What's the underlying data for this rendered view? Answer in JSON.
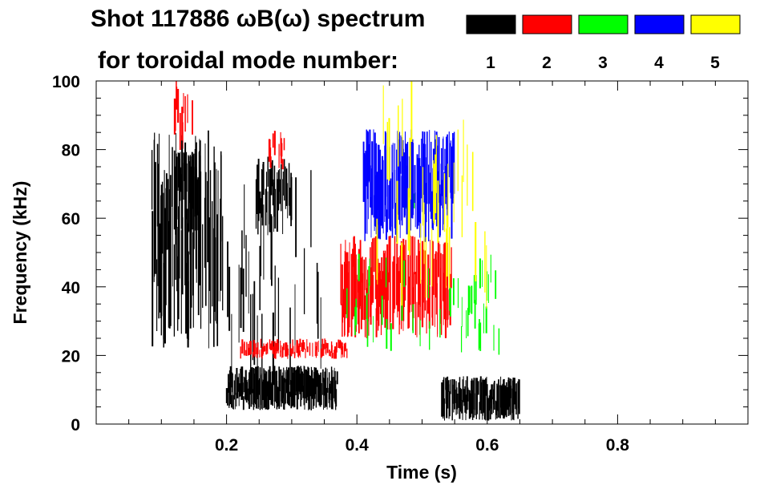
{
  "chart_data": {
    "type": "heatmap",
    "title": "Shot 117886 ωB(ω) spectrum",
    "subtitle": "for toroidal mode number:",
    "xlabel": "Time (s)",
    "ylabel": "Frequency (kHz)",
    "xlim": [
      0.0,
      1.0
    ],
    "ylim": [
      0,
      100
    ],
    "x_ticks": [
      {
        "value": 0.2,
        "label": "0.2"
      },
      {
        "value": 0.4,
        "label": "0.4"
      },
      {
        "value": 0.6,
        "label": "0.6"
      },
      {
        "value": 0.8,
        "label": "0.8"
      }
    ],
    "y_ticks": [
      {
        "value": 0,
        "label": "0"
      },
      {
        "value": 20,
        "label": "20"
      },
      {
        "value": 40,
        "label": "40"
      },
      {
        "value": 60,
        "label": "60"
      },
      {
        "value": 80,
        "label": "80"
      },
      {
        "value": 100,
        "label": "100"
      }
    ],
    "legend": [
      {
        "mode": "1",
        "color": "#000000"
      },
      {
        "mode": "2",
        "color": "#ff0000"
      },
      {
        "mode": "3",
        "color": "#00ff00"
      },
      {
        "mode": "4",
        "color": "#0000ff"
      },
      {
        "mode": "5",
        "color": "#ffff00"
      }
    ],
    "regions": [
      {
        "name": "n1-early-broadband",
        "mode": "1",
        "color": "#000000",
        "x": [
          0.085,
          0.195
        ],
        "y": [
          22,
          86
        ],
        "density": 0.55
      },
      {
        "name": "n1-core-60-70",
        "mode": "1",
        "color": "#000000",
        "x": [
          0.12,
          0.16
        ],
        "y": [
          55,
          80
        ],
        "density": 0.8
      },
      {
        "name": "n1-mid-broadband",
        "mode": "1",
        "color": "#000000",
        "x": [
          0.245,
          0.3
        ],
        "y": [
          55,
          78
        ],
        "density": 0.55
      },
      {
        "name": "n1-vertical-streaks",
        "mode": "1",
        "color": "#000000",
        "x": [
          0.2,
          0.345
        ],
        "y": [
          10,
          80
        ],
        "density": 0.12
      },
      {
        "name": "n1-low-burst-a",
        "mode": "1",
        "color": "#000000",
        "x": [
          0.2,
          0.37
        ],
        "y": [
          4,
          17
        ],
        "density": 0.85
      },
      {
        "name": "n1-low-burst-b",
        "mode": "1",
        "color": "#000000",
        "x": [
          0.53,
          0.65
        ],
        "y": [
          1,
          14
        ],
        "density": 0.8
      },
      {
        "name": "n2-early-high",
        "mode": "2",
        "color": "#ff0000",
        "x": [
          0.12,
          0.15
        ],
        "y": [
          78,
          100
        ],
        "density": 0.3
      },
      {
        "name": "n2-band-25",
        "mode": "2",
        "color": "#ff0000",
        "x": [
          0.22,
          0.385
        ],
        "y": [
          19,
          25
        ],
        "density": 0.55
      },
      {
        "name": "n2-high-80",
        "mode": "2",
        "color": "#ff0000",
        "x": [
          0.265,
          0.29
        ],
        "y": [
          74,
          86
        ],
        "density": 0.45
      },
      {
        "name": "n2-fishbone-40",
        "mode": "2",
        "color": "#ff0000",
        "x": [
          0.375,
          0.545
        ],
        "y": [
          25,
          55
        ],
        "density": 0.7
      },
      {
        "name": "n3-green-sweep",
        "mode": "3",
        "color": "#00ff00",
        "x": [
          0.475,
          0.49
        ],
        "y": [
          62,
          68
        ],
        "density": 0.6
      },
      {
        "name": "n3-green-scatter",
        "mode": "3",
        "color": "#00ff00",
        "x": [
          0.37,
          0.62
        ],
        "y": [
          20,
          50
        ],
        "density": 0.05
      },
      {
        "name": "n4-blue-chirp",
        "mode": "4",
        "color": "#0000ff",
        "x": [
          0.41,
          0.55
        ],
        "y": [
          53,
          86
        ],
        "density": 0.7
      },
      {
        "name": "n5-yellow-scatter",
        "mode": "5",
        "color": "#ffff00",
        "x": [
          0.43,
          0.6
        ],
        "y": [
          33,
          100
        ],
        "density": 0.03
      }
    ]
  }
}
